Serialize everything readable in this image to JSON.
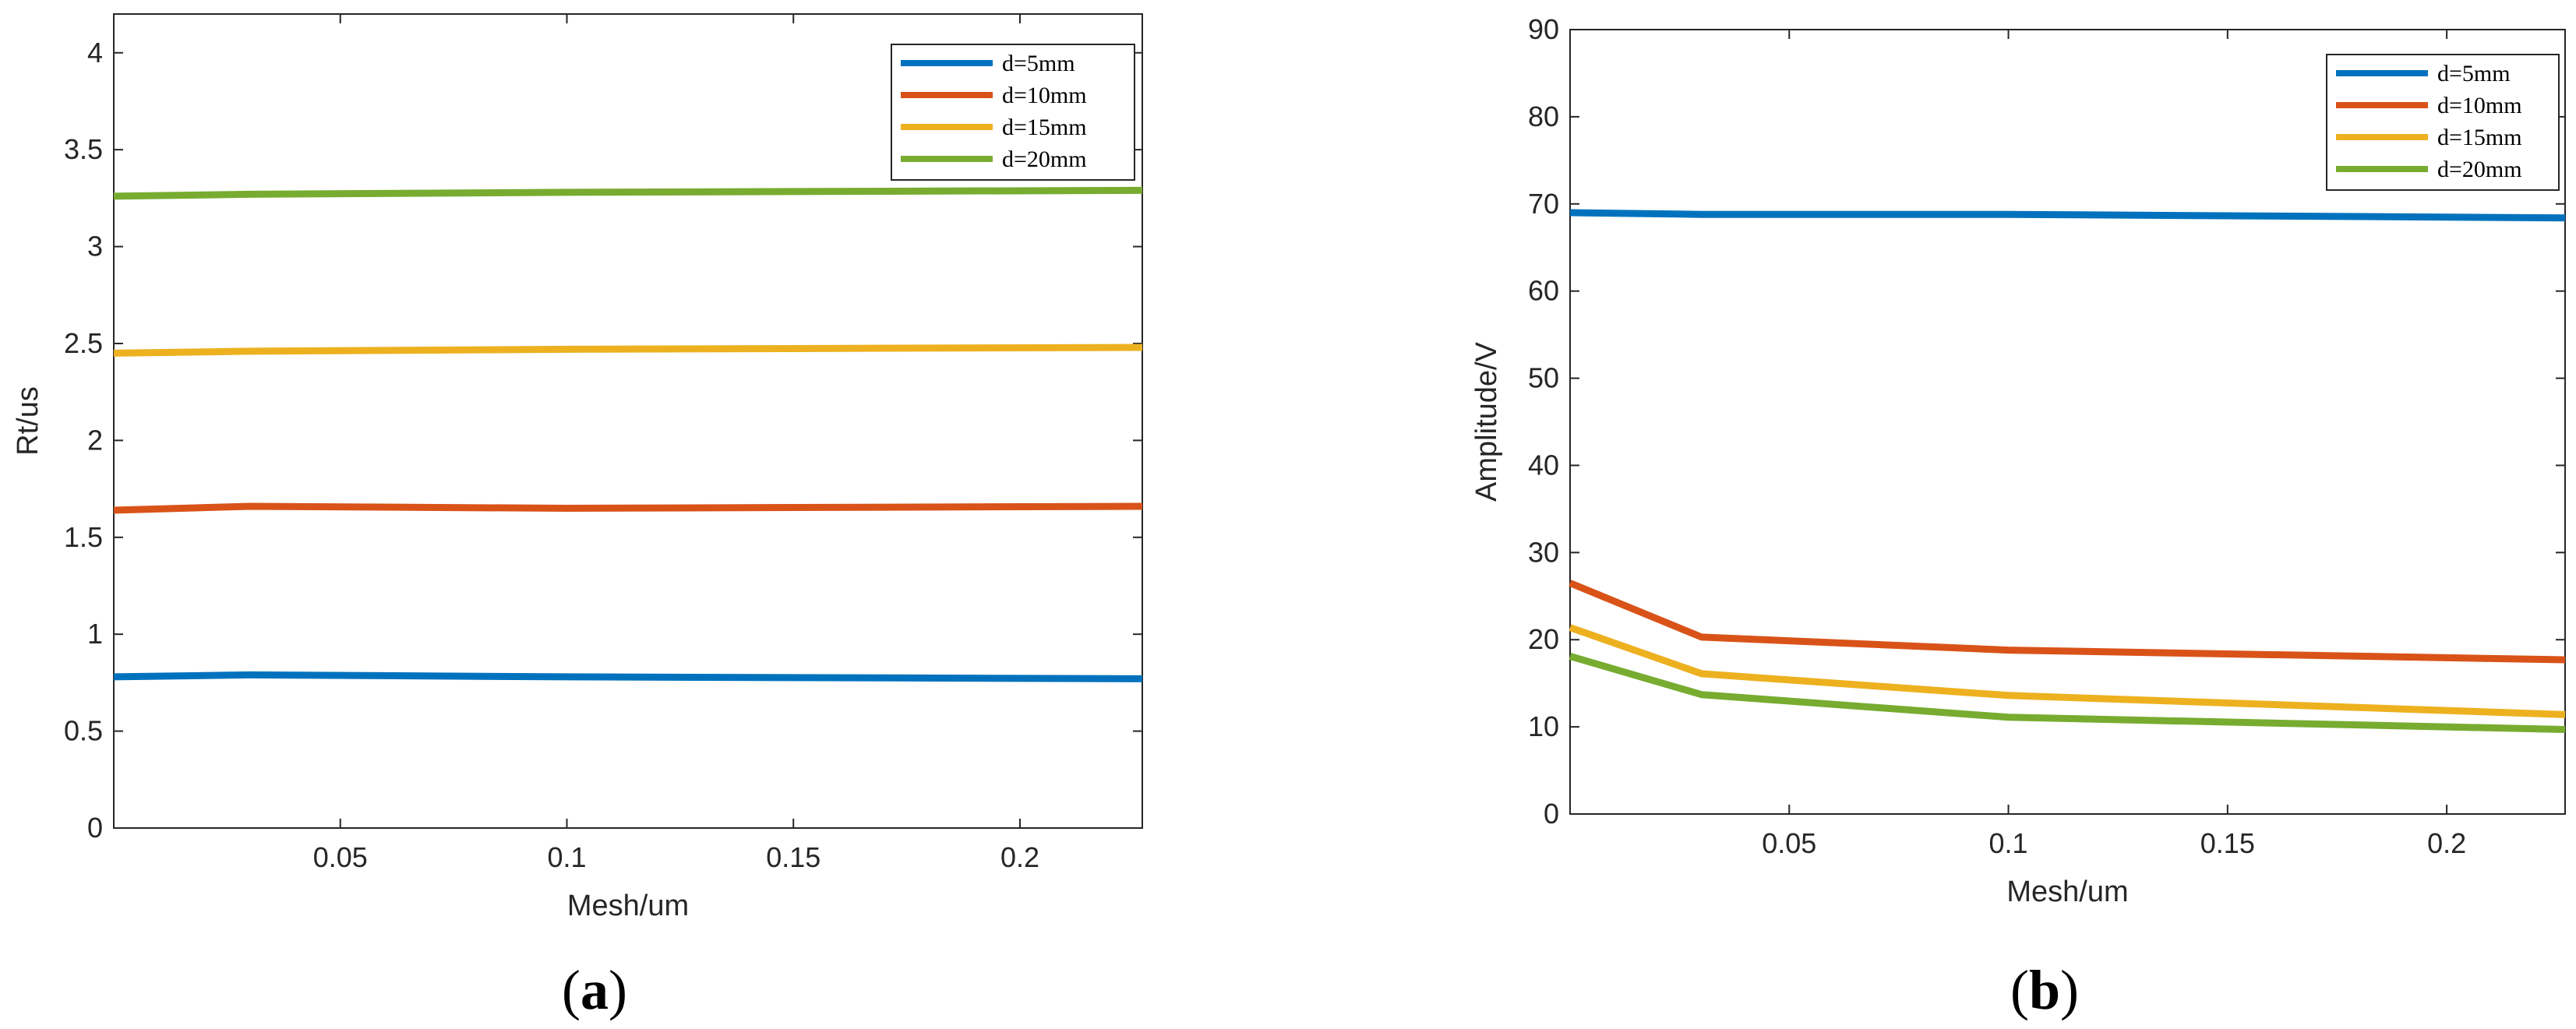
{
  "chart_data": [
    {
      "type": "line",
      "panel_label": {
        "open": "(",
        "letter": "a",
        "close": ")"
      },
      "xlabel": "Mesh/um",
      "ylabel": "Rt/us",
      "xlim": [
        0.0,
        0.227
      ],
      "ylim": [
        0,
        4.2
      ],
      "xticks": [
        0.05,
        0.1,
        0.15,
        0.2
      ],
      "xtick_labels": [
        "0.05",
        "0.1",
        "0.15",
        "0.2"
      ],
      "yticks": [
        0,
        0.5,
        1,
        1.5,
        2,
        2.5,
        3,
        3.5,
        4
      ],
      "ytick_labels": [
        "0",
        "0.5",
        "1",
        "1.5",
        "2",
        "2.5",
        "3",
        "3.5",
        "4"
      ],
      "grid": false,
      "legend_position": "top-right",
      "x": [
        0.0,
        0.03,
        0.1,
        0.227
      ],
      "series": [
        {
          "name": "d=5mm",
          "color": "#0072BD",
          "values": [
            0.78,
            0.79,
            0.78,
            0.77
          ]
        },
        {
          "name": "d=10mm",
          "color": "#D95319",
          "values": [
            1.64,
            1.66,
            1.65,
            1.66
          ]
        },
        {
          "name": "d=15mm",
          "color": "#EDB120",
          "values": [
            2.45,
            2.46,
            2.47,
            2.48
          ]
        },
        {
          "name": "d=20mm",
          "color": "#77AC30",
          "values": [
            3.26,
            3.27,
            3.28,
            3.29
          ]
        }
      ]
    },
    {
      "type": "line",
      "panel_label": {
        "open": "(",
        "letter": "b",
        "close": ")"
      },
      "xlabel": "Mesh/um",
      "ylabel": "Amplitude/V",
      "xlim": [
        0.0,
        0.227
      ],
      "ylim": [
        0,
        90
      ],
      "xticks": [
        0.05,
        0.1,
        0.15,
        0.2
      ],
      "xtick_labels": [
        "0.05",
        "0.1",
        "0.15",
        "0.2"
      ],
      "yticks": [
        0,
        10,
        20,
        30,
        40,
        50,
        60,
        70,
        80,
        90
      ],
      "ytick_labels": [
        "0",
        "10",
        "20",
        "30",
        "40",
        "50",
        "60",
        "70",
        "80",
        "90"
      ],
      "grid": false,
      "legend_position": "top-right",
      "x": [
        0.0,
        0.03,
        0.1,
        0.227
      ],
      "series": [
        {
          "name": "d=5mm",
          "color": "#0072BD",
          "values": [
            69.0,
            68.8,
            68.8,
            68.4
          ]
        },
        {
          "name": "d=10mm",
          "color": "#D95319",
          "values": [
            26.5,
            20.3,
            18.8,
            17.7
          ]
        },
        {
          "name": "d=15mm",
          "color": "#EDB120",
          "values": [
            21.4,
            16.1,
            13.6,
            11.4
          ]
        },
        {
          "name": "d=20mm",
          "color": "#77AC30",
          "values": [
            18.1,
            13.7,
            11.1,
            9.7
          ]
        }
      ]
    }
  ]
}
